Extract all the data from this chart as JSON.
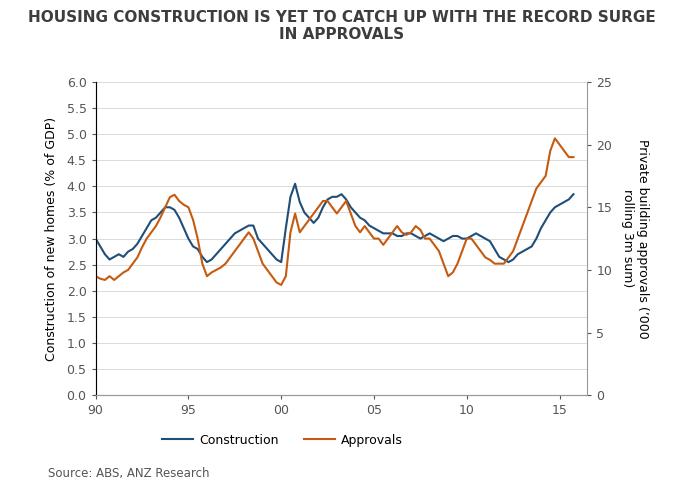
{
  "title_line1": "HOUSING CONSTRUCTION IS YET TO CATCH UP WITH THE RECORD SURGE",
  "title_line2": "IN APPROVALS",
  "title_fontsize": 11,
  "ylabel_left": "Construction of new homes (% of GDP)",
  "ylabel_right_line1": "Private building approvals (’000",
  "ylabel_right_line2": "rolling 3m sum)",
  "source": "Source: ABS, ANZ Research",
  "ylim_left": [
    0.0,
    6.0
  ],
  "ylim_right": [
    0,
    25
  ],
  "xlim": [
    1990,
    2016.5
  ],
  "xtick_positions": [
    1990,
    1995,
    2000,
    2005,
    2010,
    2015
  ],
  "xtick_labels": [
    "90",
    "95",
    "00",
    "05",
    "10",
    "15"
  ],
  "yticks_left": [
    0.0,
    0.5,
    1.0,
    1.5,
    2.0,
    2.5,
    3.0,
    3.5,
    4.0,
    4.5,
    5.0,
    5.5,
    6.0
  ],
  "yticks_right": [
    0,
    5,
    10,
    15,
    20,
    25
  ],
  "construction_color": "#1f4e79",
  "approvals_color": "#c55a11",
  "line_width": 1.5,
  "legend_construction": "Construction",
  "legend_approvals": "Approvals",
  "bg_color": "#ffffff",
  "construction_x": [
    1990.0,
    1990.25,
    1990.5,
    1990.75,
    1991.0,
    1991.25,
    1991.5,
    1991.75,
    1992.0,
    1992.25,
    1992.5,
    1992.75,
    1993.0,
    1993.25,
    1993.5,
    1993.75,
    1994.0,
    1994.25,
    1994.5,
    1994.75,
    1995.0,
    1995.25,
    1995.5,
    1995.75,
    1996.0,
    1996.25,
    1996.5,
    1996.75,
    1997.0,
    1997.25,
    1997.5,
    1997.75,
    1998.0,
    1998.25,
    1998.5,
    1998.75,
    1999.0,
    1999.25,
    1999.5,
    1999.75,
    2000.0,
    2000.25,
    2000.5,
    2000.75,
    2001.0,
    2001.25,
    2001.5,
    2001.75,
    2002.0,
    2002.25,
    2002.5,
    2002.75,
    2003.0,
    2003.25,
    2003.5,
    2003.75,
    2004.0,
    2004.25,
    2004.5,
    2004.75,
    2005.0,
    2005.25,
    2005.5,
    2005.75,
    2006.0,
    2006.25,
    2006.5,
    2006.75,
    2007.0,
    2007.25,
    2007.5,
    2007.75,
    2008.0,
    2008.25,
    2008.5,
    2008.75,
    2009.0,
    2009.25,
    2009.5,
    2009.75,
    2010.0,
    2010.25,
    2010.5,
    2010.75,
    2011.0,
    2011.25,
    2011.5,
    2011.75,
    2012.0,
    2012.25,
    2012.5,
    2012.75,
    2013.0,
    2013.25,
    2013.5,
    2013.75,
    2014.0,
    2014.25,
    2014.5,
    2014.75,
    2015.0,
    2015.25,
    2015.5,
    2015.75
  ],
  "construction_y": [
    3.0,
    2.85,
    2.7,
    2.6,
    2.65,
    2.7,
    2.65,
    2.75,
    2.8,
    2.9,
    3.05,
    3.2,
    3.35,
    3.4,
    3.5,
    3.6,
    3.6,
    3.55,
    3.4,
    3.2,
    3.0,
    2.85,
    2.8,
    2.65,
    2.55,
    2.6,
    2.7,
    2.8,
    2.9,
    3.0,
    3.1,
    3.15,
    3.2,
    3.25,
    3.25,
    3.0,
    2.9,
    2.8,
    2.7,
    2.6,
    2.55,
    3.2,
    3.8,
    4.05,
    3.7,
    3.5,
    3.4,
    3.3,
    3.4,
    3.6,
    3.75,
    3.8,
    3.8,
    3.85,
    3.75,
    3.6,
    3.5,
    3.4,
    3.35,
    3.25,
    3.2,
    3.15,
    3.1,
    3.1,
    3.1,
    3.05,
    3.05,
    3.1,
    3.1,
    3.05,
    3.0,
    3.05,
    3.1,
    3.05,
    3.0,
    2.95,
    3.0,
    3.05,
    3.05,
    3.0,
    3.0,
    3.05,
    3.1,
    3.05,
    3.0,
    2.95,
    2.8,
    2.65,
    2.6,
    2.55,
    2.6,
    2.7,
    2.75,
    2.8,
    2.85,
    3.0,
    3.2,
    3.35,
    3.5,
    3.6,
    3.65,
    3.7,
    3.75,
    3.85
  ],
  "approvals_x": [
    1990.0,
    1990.25,
    1990.5,
    1990.75,
    1991.0,
    1991.25,
    1991.5,
    1991.75,
    1992.0,
    1992.25,
    1992.5,
    1992.75,
    1993.0,
    1993.25,
    1993.5,
    1993.75,
    1994.0,
    1994.25,
    1994.5,
    1994.75,
    1995.0,
    1995.25,
    1995.5,
    1995.75,
    1996.0,
    1996.25,
    1996.5,
    1996.75,
    1997.0,
    1997.25,
    1997.5,
    1997.75,
    1998.0,
    1998.25,
    1998.5,
    1998.75,
    1999.0,
    1999.25,
    1999.5,
    1999.75,
    2000.0,
    2000.25,
    2000.5,
    2000.75,
    2001.0,
    2001.25,
    2001.5,
    2001.75,
    2002.0,
    2002.25,
    2002.5,
    2002.75,
    2003.0,
    2003.25,
    2003.5,
    2003.75,
    2004.0,
    2004.25,
    2004.5,
    2004.75,
    2005.0,
    2005.25,
    2005.5,
    2005.75,
    2006.0,
    2006.25,
    2006.5,
    2006.75,
    2007.0,
    2007.25,
    2007.5,
    2007.75,
    2008.0,
    2008.25,
    2008.5,
    2008.75,
    2009.0,
    2009.25,
    2009.5,
    2009.75,
    2010.0,
    2010.25,
    2010.5,
    2010.75,
    2011.0,
    2011.25,
    2011.5,
    2011.75,
    2012.0,
    2012.25,
    2012.5,
    2012.75,
    2013.0,
    2013.25,
    2013.5,
    2013.75,
    2014.0,
    2014.25,
    2014.5,
    2014.75,
    2015.0,
    2015.25,
    2015.5,
    2015.75
  ],
  "approvals_y": [
    9.5,
    9.3,
    9.2,
    9.5,
    9.2,
    9.5,
    9.8,
    10.0,
    10.5,
    11.0,
    11.8,
    12.5,
    13.0,
    13.5,
    14.2,
    15.0,
    15.8,
    16.0,
    15.5,
    15.2,
    15.0,
    14.0,
    12.5,
    10.5,
    9.5,
    9.8,
    10.0,
    10.2,
    10.5,
    11.0,
    11.5,
    12.0,
    12.5,
    13.0,
    12.5,
    11.5,
    10.5,
    10.0,
    9.5,
    9.0,
    8.8,
    9.5,
    13.0,
    14.5,
    13.0,
    13.5,
    14.0,
    14.5,
    15.0,
    15.5,
    15.5,
    15.0,
    14.5,
    15.0,
    15.5,
    14.5,
    13.5,
    13.0,
    13.5,
    13.0,
    12.5,
    12.5,
    12.0,
    12.5,
    13.0,
    13.5,
    13.0,
    12.8,
    13.0,
    13.5,
    13.2,
    12.5,
    12.5,
    12.0,
    11.5,
    10.5,
    9.5,
    9.8,
    10.5,
    11.5,
    12.5,
    12.5,
    12.0,
    11.5,
    11.0,
    10.8,
    10.5,
    10.5,
    10.5,
    11.0,
    11.5,
    12.5,
    13.5,
    14.5,
    15.5,
    16.5,
    17.0,
    17.5,
    19.5,
    20.5,
    20.0,
    19.5,
    19.0,
    19.0
  ]
}
